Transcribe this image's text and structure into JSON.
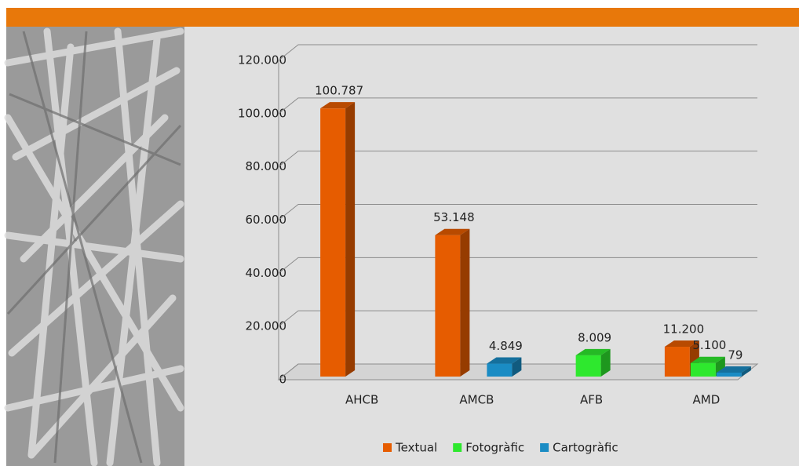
{
  "chart_data": {
    "type": "bar3d",
    "categories": [
      "AHCB",
      "AMCB",
      "AFB",
      "AMD"
    ],
    "series": [
      {
        "name": "Textual",
        "color": "#e65c00",
        "values": [
          100787,
          53148,
          null,
          11200
        ],
        "value_labels": [
          "100.787",
          "53.148",
          null,
          "11.200"
        ]
      },
      {
        "name": "Fotogràfic",
        "color": "#2ee82e",
        "values": [
          null,
          null,
          8009,
          5100
        ],
        "value_labels": [
          null,
          null,
          "8.009",
          "5.100"
        ]
      },
      {
        "name": "Cartogràfic",
        "color": "#1a8cc4",
        "values": [
          null,
          4849,
          null,
          79
        ],
        "value_labels": [
          null,
          "4.849",
          null,
          "79"
        ]
      }
    ],
    "ylim": [
      0,
      120000
    ],
    "yticks": [
      0,
      {
        "value": 20000,
        "label": "20.000"
      },
      {
        "value": 40000,
        "label": "40.000"
      },
      {
        "value": 60000,
        "label": "60.000"
      },
      {
        "value": 80000,
        "label": "80.000"
      },
      {
        "value": 100000,
        "label": "100.000"
      },
      {
        "value": 120000,
        "label": "120.000"
      }
    ],
    "grid": true,
    "legend": "bottom"
  }
}
